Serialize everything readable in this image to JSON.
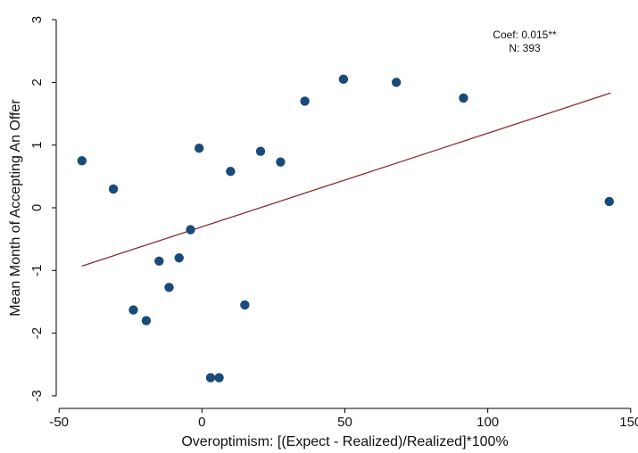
{
  "chart_data": {
    "type": "scatter",
    "xlabel": "Overoptimism: [(Expect - Realized)/Realized]*100%",
    "ylabel": "Mean Month of Accepting An Offer",
    "xlim": [
      -51,
      151
    ],
    "ylim": [
      -3.2,
      3.2
    ],
    "xticks": [
      -50,
      0,
      50,
      100,
      150
    ],
    "yticks": [
      3,
      2,
      1,
      0,
      -1,
      -2,
      -3
    ],
    "grid": false,
    "annotations": [
      "Coef: 0.015**",
      "N: 393"
    ],
    "series": [
      {
        "type": "scatter",
        "color": "#1a4a7a",
        "points": [
          [
            -42,
            0.75
          ],
          [
            -31,
            0.3
          ],
          [
            -24,
            -1.63
          ],
          [
            -19.5,
            -1.8
          ],
          [
            -15,
            -0.85
          ],
          [
            -11.5,
            -1.27
          ],
          [
            -8,
            -0.8
          ],
          [
            -4,
            -0.35
          ],
          [
            -1,
            0.95
          ],
          [
            3,
            -2.71
          ],
          [
            6,
            -2.71
          ],
          [
            10,
            0.58
          ],
          [
            15,
            -1.55
          ],
          [
            20.5,
            0.9
          ],
          [
            27.5,
            0.73
          ],
          [
            36,
            1.7
          ],
          [
            49.5,
            2.05
          ],
          [
            68,
            2.0
          ],
          [
            91.5,
            1.75
          ],
          [
            142.5,
            0.1
          ]
        ]
      },
      {
        "type": "line",
        "color": "#8b2a32",
        "points": [
          [
            -42,
            -0.93
          ],
          [
            143,
            1.83
          ]
        ]
      }
    ]
  }
}
